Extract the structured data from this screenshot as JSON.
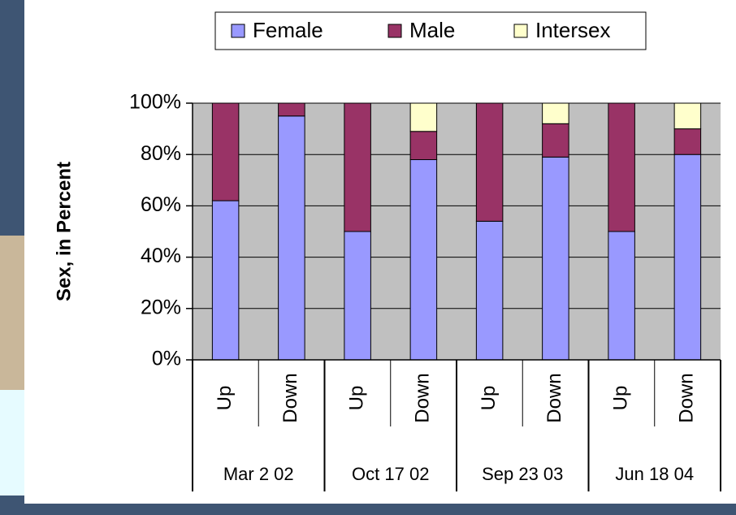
{
  "chart_data": {
    "type": "stacked_bar",
    "y_label": "Sex, in Percent",
    "categories": [
      "Up",
      "Down",
      "Up",
      "Down",
      "Up",
      "Down",
      "Up",
      "Down"
    ],
    "groups": [
      "Mar 2 02",
      "Oct 17 02",
      "Sep 23 03",
      "Jun 18 04"
    ],
    "series": [
      {
        "name": "Female",
        "color": "#9999ff",
        "values": [
          62,
          95,
          50,
          78,
          54,
          79,
          50,
          80
        ]
      },
      {
        "name": "Male",
        "color": "#993366",
        "values": [
          38,
          5,
          50,
          11,
          46,
          13,
          50,
          10
        ]
      },
      {
        "name": "Intersex",
        "color": "#ffffcc",
        "values": [
          0,
          0,
          0,
          11,
          0,
          8,
          0,
          10
        ]
      }
    ],
    "ylim": [
      0,
      100
    ],
    "yticks": [
      {
        "value": 0,
        "label": "0%"
      },
      {
        "value": 20,
        "label": "20%"
      },
      {
        "value": 40,
        "label": "40%"
      },
      {
        "value": 60,
        "label": "60%"
      },
      {
        "value": 80,
        "label": "80%"
      },
      {
        "value": 100,
        "label": "100%"
      }
    ],
    "grid": true,
    "plot_background": "#c0c0c0",
    "legend": "top"
  }
}
